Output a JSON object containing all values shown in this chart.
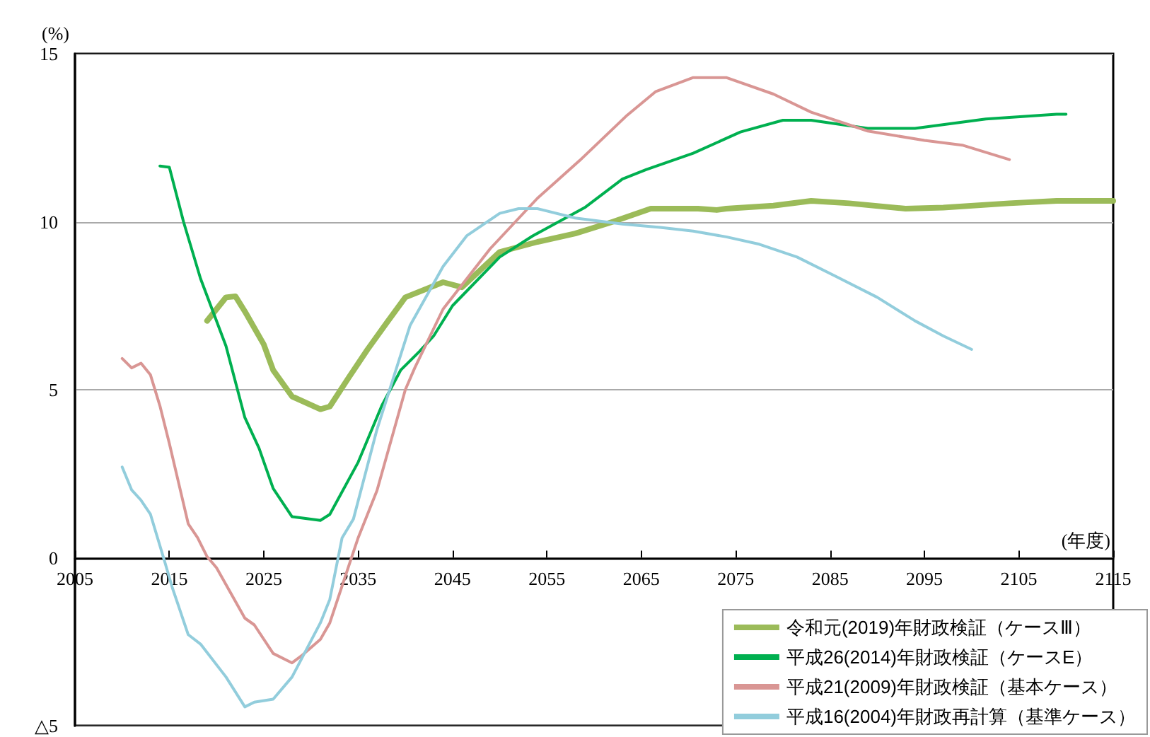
{
  "chart_data": {
    "type": "line",
    "xlabel": "(年度)",
    "ylabel": "(%)",
    "xlim": [
      2005,
      2115
    ],
    "xticks": [
      2005,
      2015,
      2025,
      2035,
      2045,
      2055,
      2065,
      2075,
      2085,
      2095,
      2105,
      2115
    ],
    "ylim": [
      -5,
      15
    ],
    "yticks": [
      {
        "value": -5,
        "label": "△5"
      },
      0,
      5,
      10,
      15
    ],
    "grid": "y",
    "legend": "bottom right",
    "marker": "none",
    "series": [
      {
        "name": "令和元(2019)年財政検証（ケースⅢ）",
        "color": "#9bbb59",
        "x": [
          2019,
          2021,
          2022,
          2023,
          2025,
          2026,
          2028,
          2031,
          2032,
          2034,
          2036,
          2038,
          2040,
          2044,
          2046,
          2050,
          2054,
          2058,
          2062,
          2066,
          2071,
          2073,
          2074,
          2079,
          2083,
          2087,
          2093,
          2097,
          2104,
          2109,
          2115
        ],
        "values": [
          7.05,
          7.75,
          7.78,
          7.33,
          6.35,
          5.58,
          4.8,
          4.42,
          4.5,
          5.36,
          6.2,
          6.98,
          7.75,
          8.2,
          8.05,
          9.1,
          9.4,
          9.65,
          10.0,
          10.39,
          10.39,
          10.35,
          10.39,
          10.48,
          10.62,
          10.55,
          10.39,
          10.42,
          10.55,
          10.62,
          10.62
        ]
      },
      {
        "name": "平成26(2014)年財政検証（ケースE）",
        "color": "#00b050",
        "x": [
          2014,
          2015,
          2016.5,
          2018.3,
          2021,
          2023,
          2024.5,
          2026,
          2028,
          2031,
          2032,
          2035,
          2037.5,
          2039.5,
          2041.5,
          2043,
          2045,
          2050,
          2053.5,
          2059,
          2063,
          2065.5,
          2070.5,
          2075.5,
          2080,
          2083,
          2089,
          2094,
          2101.5,
          2109,
          2110
        ],
        "values": [
          11.66,
          11.62,
          10.0,
          8.31,
          6.3,
          4.17,
          3.26,
          2.06,
          1.22,
          1.11,
          1.29,
          2.84,
          4.52,
          5.58,
          6.14,
          6.6,
          7.5,
          8.95,
          9.58,
          10.42,
          11.27,
          11.55,
          12.04,
          12.67,
          13.02,
          13.02,
          12.78,
          12.78,
          13.06,
          13.2,
          13.2
        ]
      },
      {
        "name": "平成21(2009)年財政検証（基本ケース）",
        "color": "#d99694",
        "x": [
          2010,
          2011,
          2012,
          2013,
          2014,
          2015,
          2017,
          2018,
          2019,
          2020,
          2023,
          2024,
          2026,
          2028,
          2029,
          2031,
          2032,
          2034,
          2035,
          2037,
          2040,
          2041,
          2044,
          2049,
          2054,
          2058.5,
          2063.5,
          2066.5,
          2070.5,
          2074,
          2079,
          2083,
          2089,
          2095,
          2099,
          2104
        ],
        "values": [
          5.93,
          5.65,
          5.79,
          5.44,
          4.52,
          3.4,
          1.01,
          0.59,
          0.03,
          -0.3,
          -1.8,
          -2.0,
          -2.85,
          -3.13,
          -2.92,
          -2.43,
          -1.94,
          -0.25,
          0.59,
          2.0,
          5.0,
          5.65,
          7.4,
          9.2,
          10.7,
          11.83,
          13.17,
          13.87,
          14.29,
          14.29,
          13.8,
          13.26,
          12.7,
          12.42,
          12.28,
          11.85
        ]
      },
      {
        "name": "平成16(2004)年財政再計算（基準ケース）",
        "color": "#92cddc",
        "x": [
          2010,
          2011,
          2012,
          2013,
          2014.5,
          2015.3,
          2017,
          2018.3,
          2021,
          2023,
          2024,
          2026,
          2028,
          2031,
          2032,
          2033.3,
          2034.5,
          2037,
          2040.5,
          2044,
          2046.5,
          2050,
          2052,
          2054,
          2058,
          2063,
          2067,
          2070.5,
          2074,
          2077.5,
          2081.5,
          2085.5,
          2090,
          2094,
          2097,
          2100
        ],
        "values": [
          2.7,
          2.02,
          1.71,
          1.29,
          -0.11,
          -0.88,
          -2.29,
          -2.57,
          -3.55,
          -4.44,
          -4.3,
          -4.21,
          -3.55,
          -1.94,
          -1.24,
          0.59,
          1.15,
          3.82,
          6.91,
          8.67,
          9.58,
          10.25,
          10.39,
          10.39,
          10.11,
          9.93,
          9.83,
          9.72,
          9.55,
          9.33,
          8.95,
          8.39,
          7.75,
          7.05,
          6.6,
          6.2
        ]
      }
    ]
  }
}
